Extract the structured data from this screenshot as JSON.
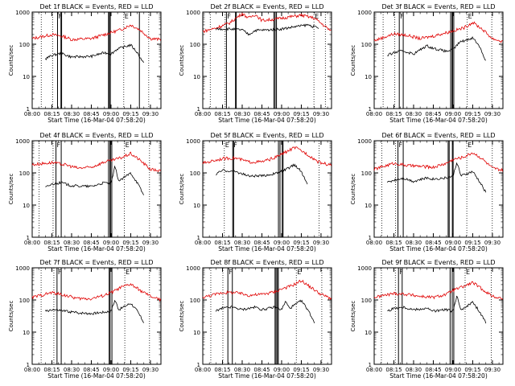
{
  "chart_data": {
    "type": "line",
    "scale": "log",
    "ylim": [
      1,
      1000
    ],
    "x_tick_labels": [
      "08:00",
      "08:15",
      "08:30",
      "08:45",
      "09:00",
      "09:15",
      "09:30"
    ],
    "x_tick_minutes": [
      0,
      15,
      30,
      45,
      60,
      75,
      90
    ],
    "y_tick_labels": [
      "1",
      "10",
      "100",
      "1000"
    ],
    "y_tick_values": [
      1,
      10,
      100,
      1000
    ],
    "xlabel": "Start Time (16-Mar-04 07:58:20)",
    "ylabel": "Counts/sec",
    "series_colors": {
      "Events": "#000000",
      "LLD": "#e00000"
    },
    "panels": [
      {
        "title": "Det 1f  BLACK = Events, RED = LLD",
        "markers": [
          "F",
          "E"
        ],
        "vlines": [
          19.3,
          21.9,
          22.4,
          58.1,
          58.7,
          59.5,
          81.6
        ],
        "dotted_vlines": [
          6.9,
          15.5,
          69.7,
          88.7
        ],
        "llld": [
          [
            0,
            150
          ],
          [
            15,
            200
          ],
          [
            25,
            170
          ],
          [
            30,
            140
          ],
          [
            45,
            150
          ],
          [
            55,
            200
          ],
          [
            60,
            230
          ],
          [
            68,
            290
          ],
          [
            75,
            400
          ],
          [
            82,
            280
          ],
          [
            90,
            150
          ],
          [
            98,
            140
          ]
        ],
        "events": [
          [
            10,
            35
          ],
          [
            15,
            45
          ],
          [
            22,
            52
          ],
          [
            30,
            40
          ],
          [
            45,
            42
          ],
          [
            55,
            55
          ],
          [
            60,
            50
          ],
          [
            65,
            72
          ],
          [
            75,
            95
          ],
          [
            80,
            55
          ],
          [
            85,
            25
          ]
        ]
      },
      {
        "title": "Det 2f  BLACK = Events, RED = LLD",
        "markers": [
          "F",
          "E"
        ],
        "vlines": [
          18.0,
          24.9,
          25.5,
          54.2,
          55.1,
          56.1
        ],
        "dotted_vlines": [
          5.7,
          17.0,
          84.6,
          93.3
        ],
        "llld": [
          [
            0,
            250
          ],
          [
            10,
            320
          ],
          [
            20,
            450
          ],
          [
            30,
            900
          ],
          [
            35,
            650
          ],
          [
            40,
            850
          ],
          [
            45,
            550
          ],
          [
            55,
            600
          ],
          [
            65,
            700
          ],
          [
            75,
            800
          ],
          [
            85,
            650
          ],
          [
            98,
            250
          ]
        ],
        "events": [
          [
            10,
            300
          ],
          [
            20,
            300
          ],
          [
            30,
            280
          ],
          [
            35,
            200
          ],
          [
            40,
            270
          ],
          [
            50,
            280
          ],
          [
            60,
            300
          ],
          [
            70,
            350
          ],
          [
            80,
            400
          ],
          [
            88,
            320
          ]
        ]
      },
      {
        "title": "Det 3f  BLACK = Events, RED = LLD",
        "markers": [
          "F",
          "E"
        ],
        "vlines": [
          19.1,
          22.1,
          58.2,
          59.3,
          59.7,
          60.6
        ],
        "dotted_vlines": [
          6.8,
          15.7,
          70.8,
          89.5
        ],
        "llld": [
          [
            0,
            130
          ],
          [
            15,
            210
          ],
          [
            25,
            190
          ],
          [
            35,
            150
          ],
          [
            45,
            180
          ],
          [
            55,
            230
          ],
          [
            60,
            260
          ],
          [
            68,
            320
          ],
          [
            75,
            480
          ],
          [
            82,
            300
          ],
          [
            90,
            150
          ],
          [
            98,
            120
          ]
        ],
        "events": [
          [
            10,
            45
          ],
          [
            15,
            55
          ],
          [
            22,
            62
          ],
          [
            30,
            50
          ],
          [
            40,
            90
          ],
          [
            45,
            75
          ],
          [
            55,
            60
          ],
          [
            60,
            68
          ],
          [
            65,
            115
          ],
          [
            75,
            160
          ],
          [
            80,
            90
          ],
          [
            85,
            30
          ]
        ]
      },
      {
        "title": "Det 4f  BLACK = Events, RED = LLD",
        "markers": [
          "F",
          "E"
        ],
        "vlines": [
          18.1,
          22.1,
          58.1,
          59.2,
          59.6,
          60.6
        ],
        "dotted_vlines": [
          5.3,
          15.9,
          70.2,
          89.3
        ],
        "llld": [
          [
            0,
            180
          ],
          [
            15,
            210
          ],
          [
            25,
            180
          ],
          [
            35,
            140
          ],
          [
            45,
            150
          ],
          [
            55,
            220
          ],
          [
            60,
            240
          ],
          [
            68,
            300
          ],
          [
            75,
            400
          ],
          [
            82,
            250
          ],
          [
            90,
            130
          ],
          [
            98,
            115
          ]
        ],
        "events": [
          [
            10,
            35
          ],
          [
            15,
            45
          ],
          [
            22,
            50
          ],
          [
            30,
            40
          ],
          [
            45,
            38
          ],
          [
            55,
            50
          ],
          [
            60,
            45
          ],
          [
            63,
            160
          ],
          [
            66,
            55
          ],
          [
            75,
            100
          ],
          [
            80,
            50
          ],
          [
            85,
            20
          ]
        ]
      },
      {
        "title": "Det 5f  BLACK = Events, RED = LLD",
        "markers": [
          "F",
          "E"
        ],
        "vlines": [
          22.8,
          23.5,
          57.6,
          58.8,
          60.5,
          61.1
        ],
        "dotted_vlines": [
          16.4,
          88.5
        ],
        "llld": [
          [
            0,
            200
          ],
          [
            15,
            280
          ],
          [
            25,
            290
          ],
          [
            35,
            220
          ],
          [
            45,
            220
          ],
          [
            55,
            300
          ],
          [
            62,
            420
          ],
          [
            70,
            620
          ],
          [
            78,
            420
          ],
          [
            88,
            220
          ],
          [
            98,
            170
          ]
        ],
        "events": [
          [
            10,
            90
          ],
          [
            15,
            120
          ],
          [
            25,
            110
          ],
          [
            35,
            80
          ],
          [
            45,
            80
          ],
          [
            55,
            95
          ],
          [
            62,
            120
          ],
          [
            70,
            180
          ],
          [
            75,
            110
          ],
          [
            80,
            40
          ]
        ]
      },
      {
        "title": "Det 6f  BLACK = Events, RED = LLD",
        "markers": [
          "F",
          "E"
        ],
        "vlines": [
          18.1,
          22.1,
          56.3,
          57.1,
          59.5,
          60.1
        ],
        "dotted_vlines": [
          5.8,
          16.2,
          70.5,
          89.9
        ],
        "llld": [
          [
            0,
            130
          ],
          [
            15,
            200
          ],
          [
            25,
            170
          ],
          [
            35,
            160
          ],
          [
            45,
            150
          ],
          [
            55,
            200
          ],
          [
            60,
            260
          ],
          [
            68,
            310
          ],
          [
            75,
            430
          ],
          [
            82,
            280
          ],
          [
            90,
            140
          ],
          [
            98,
            120
          ]
        ],
        "events": [
          [
            10,
            50
          ],
          [
            15,
            60
          ],
          [
            22,
            70
          ],
          [
            30,
            55
          ],
          [
            40,
            70
          ],
          [
            45,
            65
          ],
          [
            55,
            70
          ],
          [
            60,
            80
          ],
          [
            63,
            220
          ],
          [
            66,
            80
          ],
          [
            75,
            110
          ],
          [
            80,
            55
          ],
          [
            85,
            25
          ]
        ]
      },
      {
        "title": "Det 7f  BLACK = Events, RED = LLD",
        "markers": [
          "F",
          "E"
        ],
        "vlines": [
          18.9,
          22.1,
          58.6,
          59.3,
          60.7
        ],
        "dotted_vlines": [
          6.8,
          16.5,
          70.5,
          89.3
        ],
        "llld": [
          [
            0,
            120
          ],
          [
            15,
            170
          ],
          [
            25,
            140
          ],
          [
            35,
            110
          ],
          [
            45,
            110
          ],
          [
            55,
            140
          ],
          [
            60,
            170
          ],
          [
            68,
            250
          ],
          [
            75,
            310
          ],
          [
            82,
            200
          ],
          [
            90,
            130
          ],
          [
            98,
            100
          ]
        ],
        "events": [
          [
            10,
            45
          ],
          [
            15,
            50
          ],
          [
            25,
            45
          ],
          [
            35,
            40
          ],
          [
            45,
            38
          ],
          [
            55,
            42
          ],
          [
            60,
            45
          ],
          [
            63,
            100
          ],
          [
            66,
            50
          ],
          [
            75,
            80
          ],
          [
            80,
            45
          ],
          [
            85,
            20
          ]
        ]
      },
      {
        "title": "Det 8f  BLACK = Events, RED = LLD",
        "markers": [
          "F",
          "E"
        ],
        "vlines": [
          19.1,
          22.5,
          55.0,
          55.8,
          56.8,
          57.5
        ],
        "dotted_vlines": [
          6.1,
          15.3,
          71.2,
          90.6
        ],
        "llld": [
          [
            0,
            120
          ],
          [
            15,
            170
          ],
          [
            25,
            170
          ],
          [
            35,
            140
          ],
          [
            45,
            150
          ],
          [
            55,
            180
          ],
          [
            60,
            220
          ],
          [
            68,
            280
          ],
          [
            75,
            400
          ],
          [
            82,
            250
          ],
          [
            90,
            150
          ],
          [
            98,
            110
          ]
        ],
        "events": [
          [
            10,
            45
          ],
          [
            15,
            55
          ],
          [
            22,
            60
          ],
          [
            30,
            50
          ],
          [
            40,
            60
          ],
          [
            45,
            50
          ],
          [
            55,
            60
          ],
          [
            60,
            50
          ],
          [
            63,
            90
          ],
          [
            66,
            55
          ],
          [
            75,
            95
          ],
          [
            80,
            50
          ],
          [
            85,
            20
          ]
        ]
      },
      {
        "title": "Det 9f  BLACK = Events, RED = LLD",
        "markers": [
          "F",
          "E"
        ],
        "vlines": [
          18.5,
          21.3,
          57.8,
          59.4,
          60.6
        ],
        "dotted_vlines": [
          5.5,
          16.1,
          69.2,
          89.1
        ],
        "llld": [
          [
            0,
            120
          ],
          [
            15,
            160
          ],
          [
            25,
            150
          ],
          [
            35,
            130
          ],
          [
            45,
            120
          ],
          [
            55,
            150
          ],
          [
            60,
            200
          ],
          [
            68,
            260
          ],
          [
            75,
            350
          ],
          [
            82,
            220
          ],
          [
            90,
            130
          ],
          [
            98,
            110
          ]
        ],
        "events": [
          [
            10,
            45
          ],
          [
            15,
            55
          ],
          [
            22,
            60
          ],
          [
            30,
            50
          ],
          [
            40,
            55
          ],
          [
            45,
            45
          ],
          [
            55,
            50
          ],
          [
            60,
            45
          ],
          [
            63,
            130
          ],
          [
            66,
            50
          ],
          [
            75,
            85
          ],
          [
            80,
            45
          ],
          [
            85,
            20
          ]
        ]
      }
    ]
  }
}
